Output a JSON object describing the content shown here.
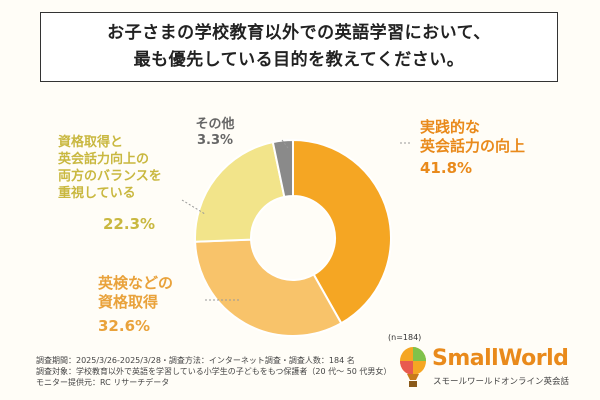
{
  "header": {
    "title_line1": "お子さまの学校教育以外での英語学習において、",
    "title_line2": "最も優先している目的を教えてください。"
  },
  "chart_data": {
    "type": "pie",
    "donut": true,
    "slices": [
      {
        "label_lines": [
          "実践的な",
          "英会話力の向上"
        ],
        "value": 41.8,
        "value_text": "41.8%",
        "color": "#f5a623",
        "label_color": "#e98a1b"
      },
      {
        "label_lines": [
          "英検などの",
          "資格取得"
        ],
        "value": 32.6,
        "value_text": "32.6%",
        "color": "#f8c36a",
        "label_color": "#e9a23b"
      },
      {
        "label_lines": [
          "資格取得と",
          "英会話力向上の",
          "両方のバランスを",
          "重視している"
        ],
        "value": 22.3,
        "value_text": "22.3%",
        "color": "#f2e48a",
        "label_color": "#c9b840"
      },
      {
        "label_lines": [
          "その他"
        ],
        "value": 3.3,
        "value_text": "3.3%",
        "color": "#8a8a8a",
        "label_color": "#666666"
      }
    ],
    "sample_size": "(n=184)"
  },
  "footer": {
    "notes": [
      "調査期間：2025/3/26-2025/3/28・調査方法：インターネット調査・調査人数：184 名",
      "調査対象：学校教育以外で英語を学習している小学生の子どもをもつ保護者（20 代～ 50 代男女）",
      "モニター提供元：RC リサーチデータ"
    ]
  },
  "brand": {
    "name": "SmallWorld",
    "subtitle": "スモールワールドオンライン英会話",
    "logo_icon": "balloon-logo-icon"
  }
}
